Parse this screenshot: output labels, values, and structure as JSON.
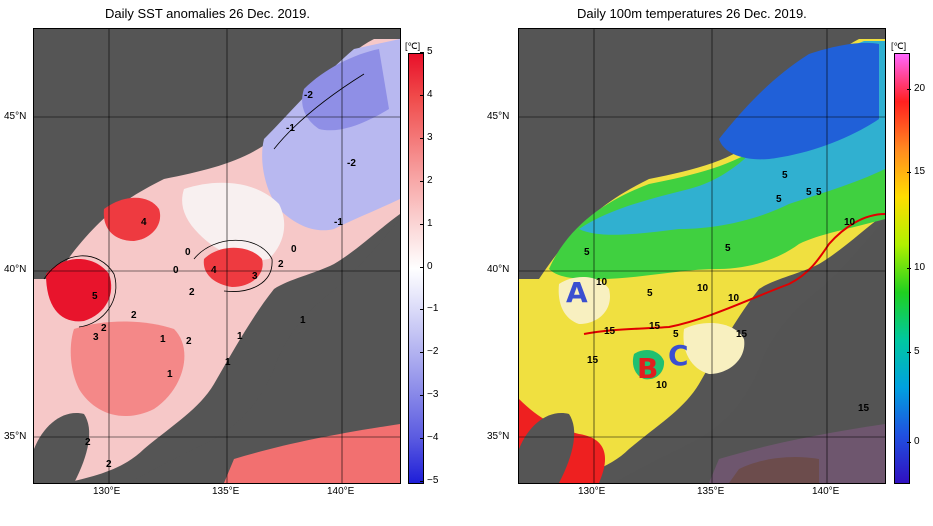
{
  "left_panel": {
    "title": "Daily SST anomalies 26 Dec. 2019.",
    "unit": "[℃]",
    "colorbar_ticks": [
      "5",
      "4",
      "3",
      "2",
      "1",
      "0",
      "−1",
      "−2",
      "−3",
      "−4",
      "−5"
    ],
    "colorbar_colors": [
      "#e8102a",
      "#f04a4a",
      "#f47a7a",
      "#f8aaaa",
      "#fbd6d6",
      "#ffffff",
      "#d9d9f8",
      "#b0b0f0",
      "#8585e8",
      "#5858e0",
      "#1e1ed8"
    ],
    "contour_labels": [
      "-2",
      "-1",
      "-2",
      "-1",
      "0",
      "4",
      "0",
      "0",
      "4",
      "3",
      "2",
      "5",
      "2",
      "2",
      "3",
      "2",
      "1",
      "2",
      "1",
      "1",
      "1",
      "1",
      "2",
      "2",
      "2"
    ]
  },
  "right_panel": {
    "title": "Daily 100m temperatures 26 Dec. 2019.",
    "unit": "[℃]",
    "colorbar_ticks": [
      "20",
      "15",
      "10",
      "5",
      "0"
    ],
    "colorbar_colors": [
      "#ff66ff",
      "#ff2020",
      "#ff8a20",
      "#ffdd00",
      "#b0f000",
      "#20d020",
      "#00c8a0",
      "#00a0e0",
      "#2050e0",
      "#3010c0"
    ],
    "contour_labels": [
      "5",
      "5",
      "5",
      "5",
      "5",
      "10",
      "5",
      "5",
      "10",
      "10",
      "10",
      "5",
      "15",
      "15",
      "15",
      "10",
      "15",
      "15"
    ],
    "region_labels": [
      {
        "text": "A",
        "color": "#3a4fd0"
      },
      {
        "text": "B",
        "color": "#e01e1e"
      },
      {
        "text": "C",
        "color": "#3a4fd0"
      }
    ]
  },
  "axes": {
    "lat_labels": [
      "45°N",
      "40°N",
      "35°N"
    ],
    "lon_labels": [
      "130°E",
      "135°E",
      "140°E"
    ]
  }
}
